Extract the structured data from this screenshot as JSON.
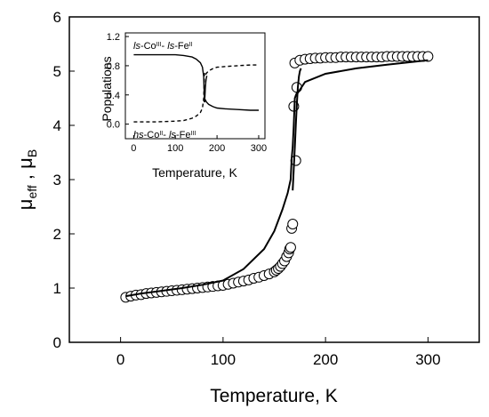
{
  "chart_data": [
    {
      "type": "scatter",
      "xlabel": "Temperature, K",
      "ylabel": {
        "main": "μ",
        "sub1": "eff",
        "sep": " , ",
        "main2": "μ",
        "sub2": "B"
      },
      "xlim": [
        -50,
        350
      ],
      "ylim": [
        0,
        6
      ],
      "xticks": [
        0,
        100,
        200,
        300
      ],
      "yticks": [
        0,
        1,
        2,
        3,
        4,
        5,
        6
      ],
      "series": [
        {
          "style": "open-circles",
          "x": [
            5,
            10,
            15,
            20,
            25,
            30,
            35,
            40,
            45,
            50,
            55,
            60,
            65,
            70,
            75,
            80,
            85,
            90,
            95,
            100,
            105,
            110,
            115,
            120,
            125,
            130,
            135,
            140,
            145,
            150,
            152,
            154,
            156,
            158,
            160,
            162,
            164,
            165,
            166,
            167,
            168,
            169,
            170,
            171,
            172,
            175,
            180,
            185,
            190,
            195,
            200,
            205,
            210,
            215,
            220,
            225,
            230,
            235,
            240,
            245,
            250,
            255,
            260,
            265,
            270,
            275,
            280,
            285,
            290,
            295,
            300
          ],
          "y": [
            0.83,
            0.85,
            0.87,
            0.88,
            0.9,
            0.91,
            0.92,
            0.93,
            0.94,
            0.95,
            0.96,
            0.97,
            0.98,
            0.99,
            1.0,
            1.01,
            1.02,
            1.03,
            1.04,
            1.05,
            1.07,
            1.09,
            1.11,
            1.13,
            1.15,
            1.18,
            1.2,
            1.23,
            1.26,
            1.3,
            1.33,
            1.36,
            1.4,
            1.45,
            1.5,
            1.58,
            1.65,
            1.72,
            1.75,
            2.1,
            2.18,
            4.35,
            5.15,
            3.35,
            4.7,
            5.2,
            5.22,
            5.23,
            5.24,
            5.24,
            5.25,
            5.25,
            5.25,
            5.26,
            5.26,
            5.26,
            5.26,
            5.26,
            5.26,
            5.26,
            5.26,
            5.26,
            5.27,
            5.27,
            5.27,
            5.27,
            5.27,
            5.27,
            5.27,
            5.27,
            5.27
          ]
        },
        {
          "style": "solid-line",
          "x": [
            5,
            20,
            40,
            60,
            80,
            100,
            120,
            140,
            150,
            158,
            163,
            166,
            167,
            168,
            169,
            170,
            171,
            172,
            173,
            180,
            200,
            230,
            260,
            300
          ],
          "y": [
            0.85,
            0.9,
            0.95,
            1.0,
            1.06,
            1.14,
            1.35,
            1.72,
            2.05,
            2.45,
            2.75,
            3.0,
            3.4,
            3.6,
            4.0,
            4.5,
            4.55,
            4.6,
            4.6,
            4.8,
            4.95,
            5.05,
            5.12,
            5.2
          ]
        },
        {
          "style": "solid-line",
          "x": [
            168,
            169,
            170,
            171,
            172,
            173,
            174,
            175,
            176
          ],
          "y": [
            2.8,
            3.2,
            3.6,
            4.0,
            4.4,
            4.7,
            4.9,
            5.0,
            5.05
          ]
        }
      ]
    },
    {
      "type": "line",
      "xlabel": "Temperature, K",
      "ylabel": "Populations",
      "xlim": [
        -20,
        315
      ],
      "ylim": [
        -0.2,
        1.25
      ],
      "xticks": [
        0,
        100,
        200,
        300
      ],
      "yticks": [
        "0.0",
        "0.4",
        "0.8",
        "1.2"
      ],
      "annotations": [
        {
          "parts": [
            {
              "t": "ls",
              "s": "it"
            },
            {
              "t": "-Co"
            },
            {
              "t": "III",
              "s": "sup"
            },
            {
              "t": "- "
            },
            {
              "t": "ls",
              "s": "it"
            },
            {
              "t": "-Fe"
            },
            {
              "t": "II",
              "s": "sup"
            }
          ]
        },
        {
          "parts": [
            {
              "t": "hs",
              "s": "it"
            },
            {
              "t": "-Co"
            },
            {
              "t": "II",
              "s": "sup"
            },
            {
              "t": "- "
            },
            {
              "t": "ls",
              "s": "it"
            },
            {
              "t": "-Fe"
            },
            {
              "t": "III",
              "s": "sup"
            }
          ]
        }
      ],
      "series": [
        {
          "style": "solid-line",
          "x": [
            0,
            50,
            100,
            120,
            140,
            150,
            160,
            165,
            168,
            170,
            172,
            175,
            180,
            190,
            200,
            220,
            250,
            280,
            300
          ],
          "y": [
            0.95,
            0.95,
            0.95,
            0.94,
            0.92,
            0.89,
            0.84,
            0.78,
            0.65,
            0.3,
            0.33,
            0.3,
            0.27,
            0.24,
            0.22,
            0.21,
            0.2,
            0.19,
            0.19
          ]
        },
        {
          "style": "solid-line",
          "x": [
            170,
            171,
            172,
            173,
            174,
            175,
            176
          ],
          "y": [
            0.3,
            0.38,
            0.5,
            0.58,
            0.62,
            0.65,
            0.66
          ]
        },
        {
          "style": "dashed-line",
          "x": [
            0,
            50,
            100,
            120,
            140,
            150,
            160,
            165,
            168,
            170,
            172,
            175,
            180,
            190,
            200,
            220,
            250,
            280,
            300
          ],
          "y": [
            0.03,
            0.03,
            0.04,
            0.05,
            0.08,
            0.11,
            0.16,
            0.22,
            0.35,
            0.7,
            0.67,
            0.7,
            0.73,
            0.76,
            0.78,
            0.79,
            0.8,
            0.81,
            0.81
          ]
        }
      ]
    }
  ]
}
